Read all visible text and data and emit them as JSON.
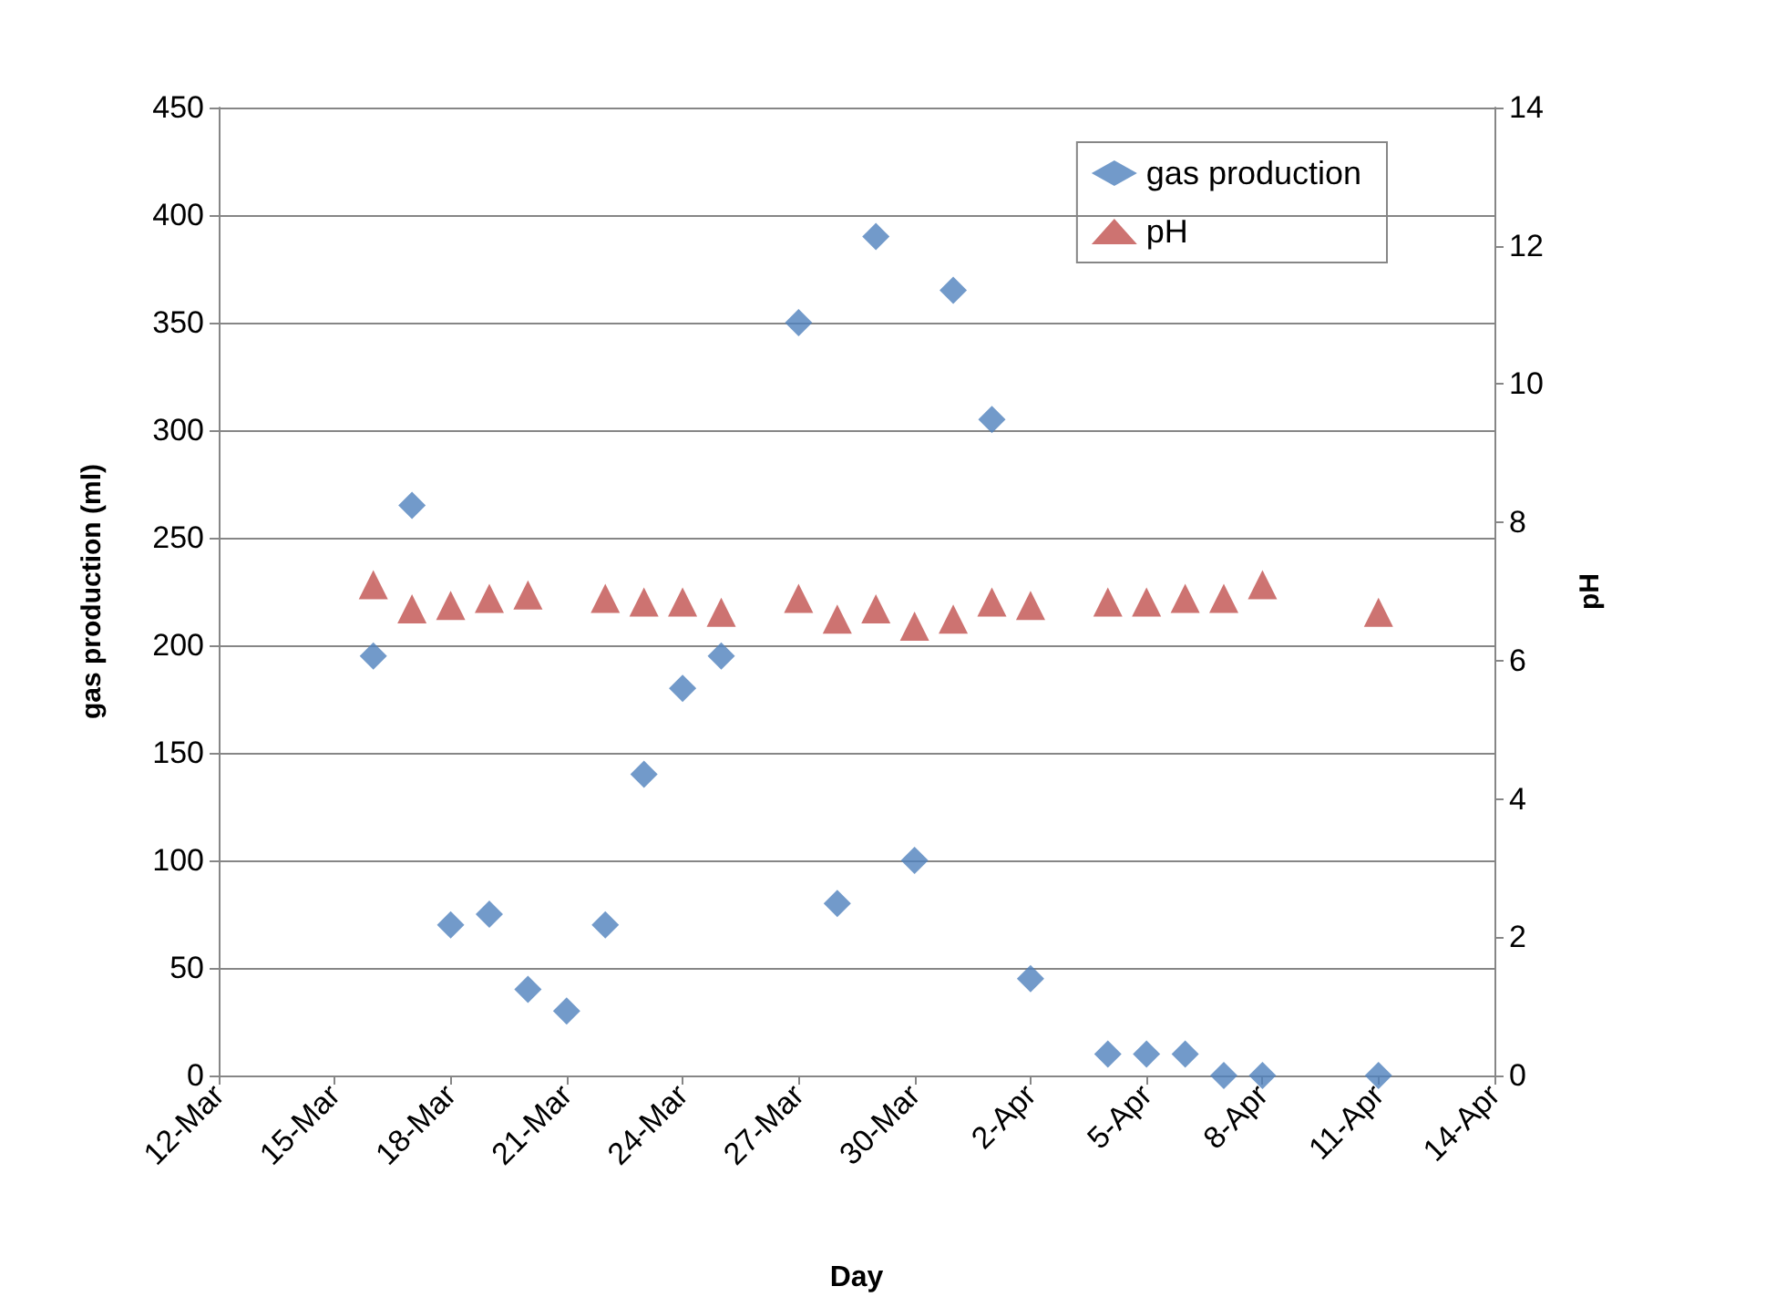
{
  "chart_data": {
    "type": "scatter",
    "xlabel": "Day",
    "ylabel": "gas production (ml)",
    "y2label": "pH",
    "xlim": [
      "--03-12",
      "--04-14"
    ],
    "xticks": [
      {
        "value": "--03-12",
        "label": "12-Mar"
      },
      {
        "value": "--03-15",
        "label": "15-Mar"
      },
      {
        "value": "--03-18",
        "label": "18-Mar"
      },
      {
        "value": "--03-21",
        "label": "21-Mar"
      },
      {
        "value": "--03-24",
        "label": "24-Mar"
      },
      {
        "value": "--03-27",
        "label": "27-Mar"
      },
      {
        "value": "--03-30",
        "label": "30-Mar"
      },
      {
        "value": "--04-02",
        "label": "2-Apr"
      },
      {
        "value": "--04-05",
        "label": "5-Apr"
      },
      {
        "value": "--04-08",
        "label": "8-Apr"
      },
      {
        "value": "--04-11",
        "label": "11-Apr"
      },
      {
        "value": "--04-14",
        "label": "14-Apr"
      }
    ],
    "ylim": [
      0,
      450
    ],
    "yticks": [
      0,
      50,
      100,
      150,
      200,
      250,
      300,
      350,
      400,
      450
    ],
    "y2lim": [
      0,
      14
    ],
    "y2ticks": [
      0,
      2,
      4,
      6,
      8,
      10,
      12,
      14
    ],
    "grid": "y",
    "legend": "top right",
    "series": [
      {
        "name": "gas production",
        "color": "#4f81bd",
        "marker": "diamond",
        "x": [
          "--03-16",
          "--03-17",
          "--03-18",
          "--03-19",
          "--03-20",
          "--03-21",
          "--03-22",
          "--03-23",
          "--03-24",
          "--03-25",
          "--03-27",
          "--03-28",
          "--03-29",
          "--03-30",
          "--03-31",
          "--04-01",
          "--04-02",
          "--04-04",
          "--04-05",
          "--04-06",
          "--04-07",
          "--04-08",
          "--04-11"
        ],
        "values": [
          195,
          265,
          70,
          75,
          40,
          30,
          70,
          140,
          180,
          195,
          350,
          80,
          390,
          100,
          365,
          305,
          45,
          10,
          10,
          10,
          0,
          0,
          0
        ]
      },
      {
        "name": "pH",
        "color": "#c0504d",
        "marker": "triangle",
        "axis": "y2",
        "x": [
          "--03-16",
          "--03-17",
          "--03-18",
          "--03-19",
          "--03-20",
          "--03-22",
          "--03-23",
          "--03-24",
          "--03-25",
          "--03-27",
          "--03-28",
          "--03-29",
          "--03-30",
          "--03-31",
          "--04-01",
          "--04-02",
          "--04-04",
          "--04-05",
          "--04-06",
          "--04-07",
          "--04-08",
          "--04-11"
        ],
        "values": [
          7.1,
          6.75,
          6.8,
          6.9,
          6.95,
          6.9,
          6.85,
          6.85,
          6.7,
          6.9,
          6.6,
          6.75,
          6.5,
          6.6,
          6.85,
          6.8,
          6.85,
          6.85,
          6.9,
          6.9,
          7.1,
          6.7
        ]
      }
    ]
  }
}
